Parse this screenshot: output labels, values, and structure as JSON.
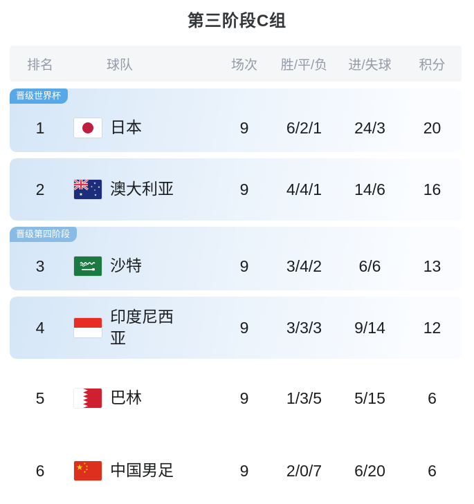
{
  "title": "第三阶段C组",
  "table": {
    "headers": {
      "rank": "排名",
      "team": "球队",
      "matches": "场次",
      "wdl": "胜/平/负",
      "goals": "进/失球",
      "points": "积分"
    },
    "rows": [
      {
        "rank": "1",
        "team": "日本",
        "flag": "japan",
        "badge": "晋级世界杯",
        "badge_color": "#58a7e7",
        "highlight": true,
        "matches": "9",
        "wdl": "6/2/1",
        "goals": "24/3",
        "points": "20"
      },
      {
        "rank": "2",
        "team": "澳大利亚",
        "flag": "australia",
        "badge": "",
        "badge_color": "",
        "highlight": true,
        "matches": "9",
        "wdl": "4/4/1",
        "goals": "14/6",
        "points": "16"
      },
      {
        "rank": "3",
        "team": "沙特",
        "flag": "saudi-arabia",
        "badge": "晋级第四阶段",
        "badge_color": "#89bbe7",
        "highlight": true,
        "matches": "9",
        "wdl": "3/4/2",
        "goals": "6/6",
        "points": "13"
      },
      {
        "rank": "4",
        "team": "印度尼西亚",
        "flag": "indonesia",
        "badge": "",
        "badge_color": "",
        "highlight": true,
        "matches": "9",
        "wdl": "3/3/3",
        "goals": "9/14",
        "points": "12"
      },
      {
        "rank": "5",
        "team": "巴林",
        "flag": "bahrain",
        "badge": "",
        "badge_color": "",
        "highlight": false,
        "matches": "9",
        "wdl": "1/3/5",
        "goals": "5/15",
        "points": "6"
      },
      {
        "rank": "6",
        "team": "中国男足",
        "flag": "china",
        "badge": "",
        "badge_color": "",
        "highlight": false,
        "matches": "9",
        "wdl": "2/0/7",
        "goals": "6/20",
        "points": "6"
      }
    ],
    "colors": {
      "badge_world_cup": "#58a7e7",
      "badge_fourth_stage": "#89bbe7",
      "row_highlight_left": "#d5e6f7",
      "row_highlight_right": "#fafcff",
      "header_bg": "#f5f6f8",
      "header_text": "#949ba7",
      "body_text": "#1b1c1e"
    }
  }
}
